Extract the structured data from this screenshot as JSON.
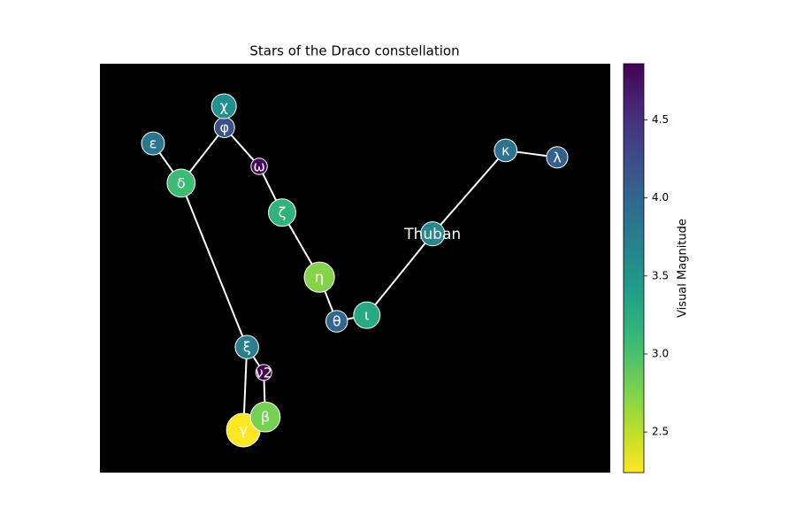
{
  "chart_data": {
    "type": "scatter",
    "title": "Stars of the Draco constellation",
    "xlim": [
      0,
      100
    ],
    "ylim": [
      0,
      100
    ],
    "stars": [
      {
        "name": "γ",
        "x": 28.1,
        "y": 10.4,
        "magnitude": 2.23
      },
      {
        "name": "β",
        "x": 32.4,
        "y": 13.6,
        "magnitude": 2.79
      },
      {
        "name": "ν2",
        "x": 32.1,
        "y": 24.5,
        "magnitude": 4.87
      },
      {
        "name": "ξ",
        "x": 28.8,
        "y": 30.7,
        "magnitude": 3.75
      },
      {
        "name": "δ",
        "x": 15.9,
        "y": 70.8,
        "magnitude": 3.07
      },
      {
        "name": "ε",
        "x": 10.4,
        "y": 80.5,
        "magnitude": 3.83
      },
      {
        "name": "φ",
        "x": 24.4,
        "y": 84.4,
        "magnitude": 4.22
      },
      {
        "name": "χ",
        "x": 24.3,
        "y": 89.6,
        "magnitude": 3.55
      },
      {
        "name": "ω",
        "x": 31.2,
        "y": 74.9,
        "magnitude": 4.8
      },
      {
        "name": "ζ",
        "x": 35.7,
        "y": 63.6,
        "magnitude": 3.17
      },
      {
        "name": "η",
        "x": 43.0,
        "y": 47.8,
        "magnitude": 2.73
      },
      {
        "name": "θ",
        "x": 46.4,
        "y": 37.0,
        "magnitude": 4.01
      },
      {
        "name": "ι",
        "x": 52.3,
        "y": 38.5,
        "magnitude": 3.29
      },
      {
        "name": "Thuban",
        "x": 65.2,
        "y": 58.4,
        "magnitude": 3.65
      },
      {
        "name": "κ",
        "x": 79.5,
        "y": 78.8,
        "magnitude": 3.87
      },
      {
        "name": "λ",
        "x": 89.6,
        "y": 77.1,
        "magnitude": 4.06
      }
    ],
    "edges": [
      [
        5,
        4
      ],
      [
        4,
        6
      ],
      [
        6,
        7
      ],
      [
        6,
        8
      ],
      [
        8,
        9
      ],
      [
        9,
        10
      ],
      [
        10,
        11
      ],
      [
        11,
        12
      ],
      [
        12,
        13
      ],
      [
        13,
        14
      ],
      [
        14,
        15
      ],
      [
        4,
        3
      ],
      [
        3,
        2
      ],
      [
        2,
        1
      ],
      [
        1,
        0
      ],
      [
        0,
        3
      ]
    ],
    "colorbar": {
      "label": "Visual Magnitude",
      "clim": [
        2.24,
        4.86
      ],
      "ticks": [
        2.5,
        3.0,
        3.5,
        4.0,
        4.5
      ],
      "colormap": "viridis_r"
    }
  }
}
